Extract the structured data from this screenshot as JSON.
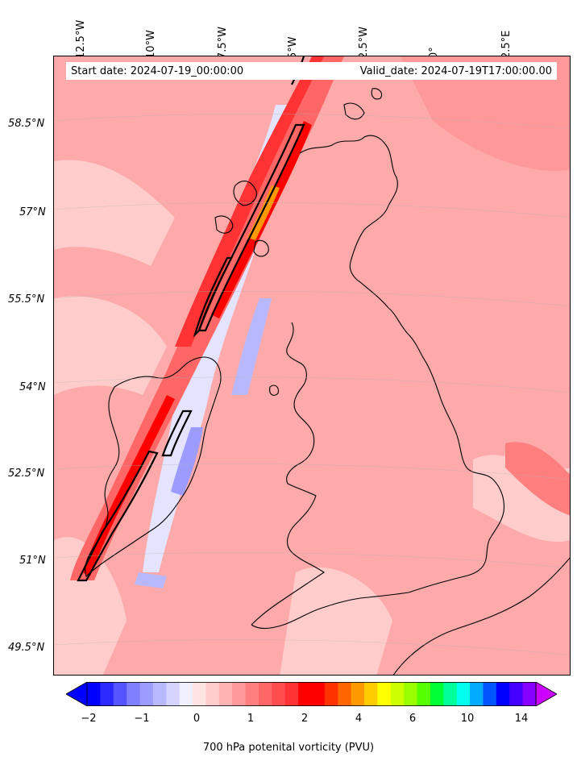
{
  "header": {
    "start_date": "Start date: 2024-07-19_00:00:00",
    "valid_date": "Valid_date: 2024-07-19T17:00:00.00"
  },
  "longitude_labels": [
    "12.5°W",
    "10°W",
    "7.5°W",
    "5°W",
    "2.5°W",
    "0°",
    "2.5°E"
  ],
  "latitude_labels": [
    "58.5°N",
    "57°N",
    "55.5°N",
    "54°N",
    "52.5°N",
    "51°N",
    "49.5°N"
  ],
  "colorbar": {
    "title": "700 hPa potenital vorticity (PVU)",
    "ticks": [
      "−2",
      "−1",
      "0",
      "1",
      "2",
      "4",
      "6",
      "10",
      "14"
    ],
    "colors": [
      "#0000ff",
      "#2a2aff",
      "#5555ff",
      "#7f7fff",
      "#9c9cff",
      "#b8b8ff",
      "#d4d4ff",
      "#f0f0ff",
      "#ffe4e4",
      "#ffcccc",
      "#ffb3b3",
      "#ff9999",
      "#ff7f7f",
      "#ff6666",
      "#ff4c4c",
      "#ff3333",
      "#ff0000",
      "#ff0000",
      "#ff3300",
      "#ff6600",
      "#ff9900",
      "#ffcc00",
      "#ffff00",
      "#ccff00",
      "#99ff00",
      "#55ff00",
      "#00ff33",
      "#00ff99",
      "#00ffee",
      "#00aaff",
      "#0055ff",
      "#0000ff",
      "#4400ff",
      "#8800ff"
    ],
    "extend_low_color": "#0000ff",
    "extend_high_color": "#cc00ff"
  },
  "map": {
    "background_color": "#ffaaaa",
    "land_outline_color": "#000000",
    "contour_color": "#000000"
  }
}
